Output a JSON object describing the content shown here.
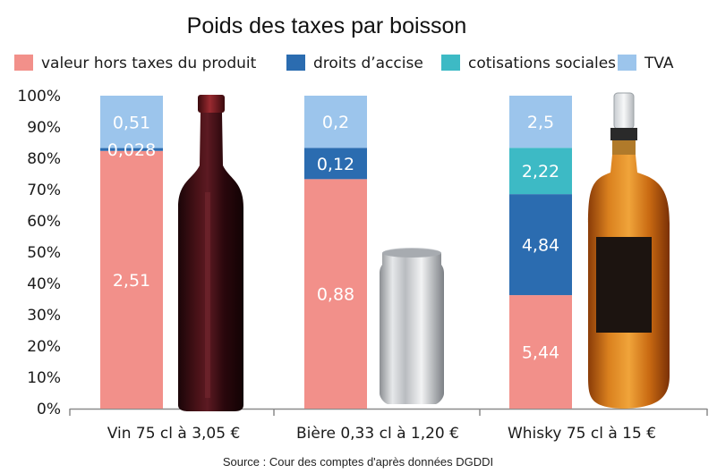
{
  "chart_data": {
    "type": "bar",
    "stacked": true,
    "normalized_percent": true,
    "title": "Poids des taxes par boisson",
    "categories": [
      "Vin 75 cl à 3,05 €",
      "Bière 0,33 cl à 1,20 €",
      "Whisky 75 cl à 15 €"
    ],
    "series": [
      {
        "name": "valeur hors taxes du produit",
        "color": "#F2908A",
        "values": [
          2.51,
          0.88,
          5.44
        ],
        "labels": [
          "2,51",
          "0,88",
          "5,44"
        ]
      },
      {
        "name": "droits d’accise",
        "color": "#2B6CB0",
        "values": [
          0.028,
          0.12,
          4.84
        ],
        "labels": [
          "0,028",
          "0,12",
          "4,84"
        ]
      },
      {
        "name": "cotisations sociales",
        "color": "#3DBAC5",
        "values": [
          0,
          0,
          2.22
        ],
        "labels": [
          "",
          "",
          "2,22"
        ]
      },
      {
        "name": "TVA",
        "color": "#9CC5EC",
        "values": [
          0.51,
          0.2,
          2.5
        ],
        "labels": [
          "0,51",
          "0,2",
          "2,5"
        ]
      }
    ],
    "yticks": [
      "0%",
      "10%",
      "20%",
      "30%",
      "40%",
      "50%",
      "60%",
      "70%",
      "80%",
      "90%",
      "100%"
    ],
    "ylim": [
      0,
      100
    ],
    "legend_position": "top",
    "grid": false
  },
  "source": "Source : Cour des comptes d'après données DGDDI",
  "images": [
    "wine-bottle",
    "beer-can",
    "whisky-bottle"
  ]
}
